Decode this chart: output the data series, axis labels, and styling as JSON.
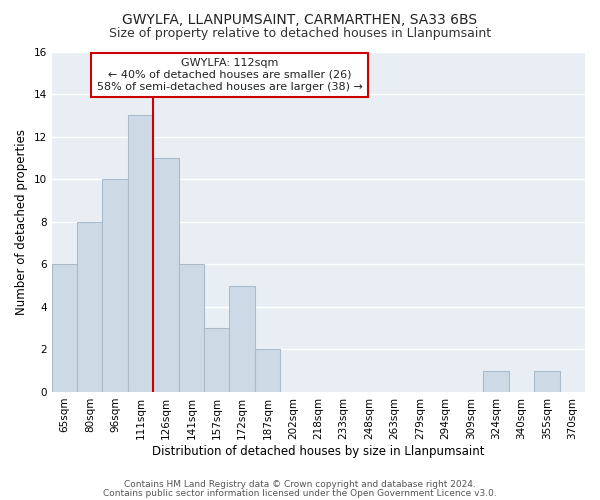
{
  "title": "GWYLFA, LLANPUMSAINT, CARMARTHEN, SA33 6BS",
  "subtitle": "Size of property relative to detached houses in Llanpumsaint",
  "xlabel": "Distribution of detached houses by size in Llanpumsaint",
  "ylabel": "Number of detached properties",
  "bar_labels": [
    "65sqm",
    "80sqm",
    "96sqm",
    "111sqm",
    "126sqm",
    "141sqm",
    "157sqm",
    "172sqm",
    "187sqm",
    "202sqm",
    "218sqm",
    "233sqm",
    "248sqm",
    "263sqm",
    "279sqm",
    "294sqm",
    "309sqm",
    "324sqm",
    "340sqm",
    "355sqm",
    "370sqm"
  ],
  "bar_values": [
    6,
    8,
    10,
    13,
    11,
    6,
    3,
    5,
    2,
    0,
    0,
    0,
    0,
    0,
    0,
    0,
    0,
    1,
    0,
    1,
    0
  ],
  "bar_color": "#cdd9e5",
  "bar_edge_color": "#aabccc",
  "vline_color": "#cc0000",
  "annotation_text": "GWYLFA: 112sqm\n← 40% of detached houses are smaller (26)\n58% of semi-detached houses are larger (38) →",
  "annotation_box_color": "white",
  "annotation_box_edgecolor": "#cc0000",
  "ylim": [
    0,
    16
  ],
  "yticks": [
    0,
    2,
    4,
    6,
    8,
    10,
    12,
    14,
    16
  ],
  "footer_line1": "Contains HM Land Registry data © Crown copyright and database right 2024.",
  "footer_line2": "Contains public sector information licensed under the Open Government Licence v3.0.",
  "background_color": "#ffffff",
  "plot_bg_color": "#e8eef4",
  "grid_color": "#ffffff",
  "title_fontsize": 10,
  "subtitle_fontsize": 9,
  "axis_label_fontsize": 8.5,
  "tick_fontsize": 7.5,
  "annotation_fontsize": 8,
  "footer_fontsize": 6.5
}
